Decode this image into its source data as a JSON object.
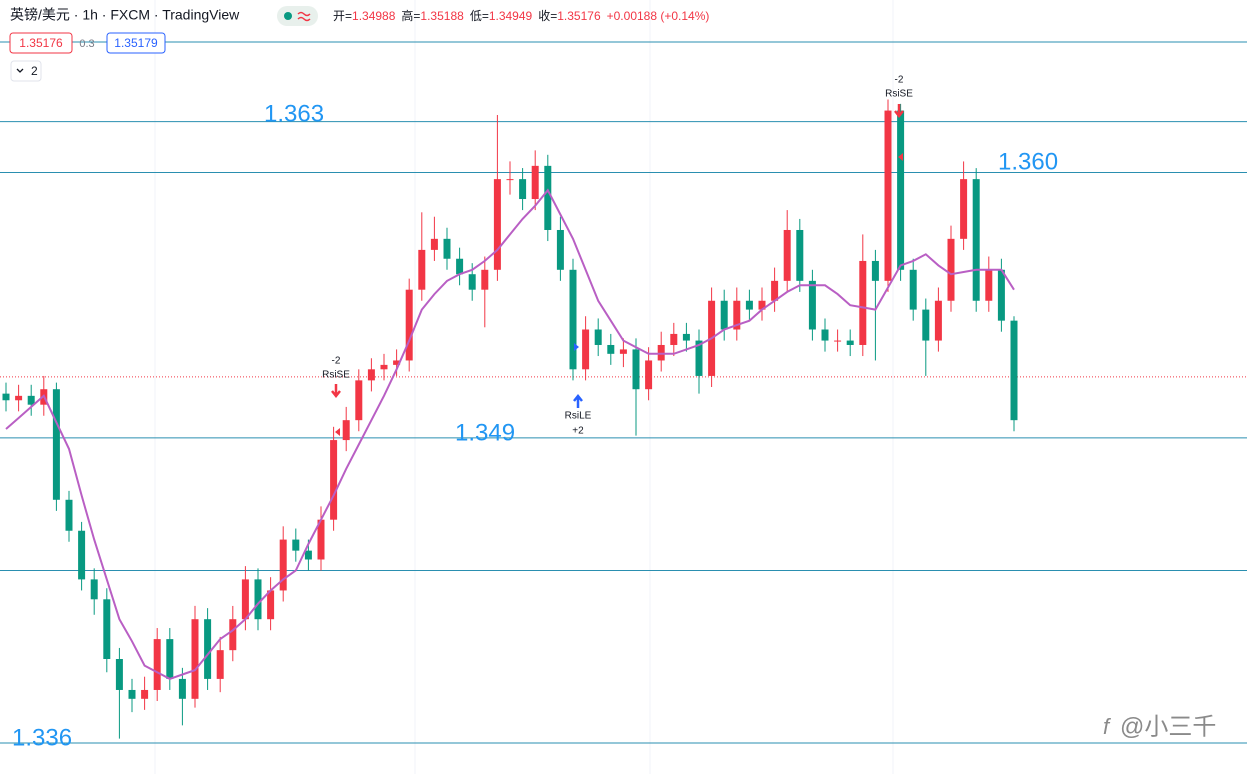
{
  "chart_data": {
    "type": "candlestick",
    "title": "英镑/美元 · 1h · FXCM · TradingView",
    "ohlc": [
      {
        "label": "开=",
        "value": 1.34988
      },
      {
        "label": "高=",
        "value": 1.35188
      },
      {
        "label": "低=",
        "value": 1.34949
      },
      {
        "label": "收=",
        "value": 1.35176
      }
    ],
    "change": "+0.00188 (+0.14%)",
    "quote": {
      "bid": 1.35176,
      "spread": 0.3,
      "ask": 1.35179
    },
    "indicator_count": 2,
    "ylim": [
      1.3338,
      1.3688
    ],
    "up_color": "#f23645",
    "down_color": "#089981",
    "candles": [
      [
        1.351,
        1.3515,
        1.3502,
        1.3507
      ],
      [
        1.3507,
        1.3514,
        1.3502,
        1.3509
      ],
      [
        1.3509,
        1.3514,
        1.35,
        1.3505
      ],
      [
        1.3505,
        1.3518,
        1.35,
        1.3512
      ],
      [
        1.3512,
        1.3515,
        1.3457,
        1.3462
      ],
      [
        1.3462,
        1.3466,
        1.3443,
        1.3448
      ],
      [
        1.3448,
        1.3452,
        1.3421,
        1.3426
      ],
      [
        1.3426,
        1.3431,
        1.341,
        1.3417
      ],
      [
        1.3417,
        1.3422,
        1.3384,
        1.339
      ],
      [
        1.339,
        1.3395,
        1.3354,
        1.3376
      ],
      [
        1.3376,
        1.3381,
        1.3366,
        1.3372
      ],
      [
        1.3372,
        1.3382,
        1.3367,
        1.3376
      ],
      [
        1.3376,
        1.3404,
        1.3371,
        1.3399
      ],
      [
        1.3399,
        1.3404,
        1.3376,
        1.3381
      ],
      [
        1.3381,
        1.3386,
        1.336,
        1.3372
      ],
      [
        1.3372,
        1.3414,
        1.3368,
        1.3408
      ],
      [
        1.3408,
        1.3413,
        1.3376,
        1.3381
      ],
      [
        1.3381,
        1.34,
        1.3375,
        1.3394
      ],
      [
        1.3394,
        1.3414,
        1.3389,
        1.3408
      ],
      [
        1.3408,
        1.3432,
        1.3403,
        1.3426
      ],
      [
        1.3426,
        1.3431,
        1.3403,
        1.3408
      ],
      [
        1.3408,
        1.3427,
        1.3403,
        1.3421
      ],
      [
        1.3421,
        1.345,
        1.3416,
        1.3444
      ],
      [
        1.3444,
        1.3449,
        1.3434,
        1.3439
      ],
      [
        1.3439,
        1.3444,
        1.343,
        1.3435
      ],
      [
        1.3435,
        1.3459,
        1.343,
        1.3453
      ],
      [
        1.3453,
        1.3495,
        1.3448,
        1.3489
      ],
      [
        1.3489,
        1.3504,
        1.3484,
        1.3498
      ],
      [
        1.3498,
        1.3521,
        1.3493,
        1.3516
      ],
      [
        1.3516,
        1.3526,
        1.3511,
        1.3521
      ],
      [
        1.3521,
        1.3528,
        1.3516,
        1.3523
      ],
      [
        1.3523,
        1.353,
        1.3518,
        1.3525
      ],
      [
        1.3525,
        1.3562,
        1.352,
        1.3557
      ],
      [
        1.3557,
        1.3592,
        1.3552,
        1.3575
      ],
      [
        1.3575,
        1.359,
        1.357,
        1.358
      ],
      [
        1.358,
        1.3585,
        1.3566,
        1.3571
      ],
      [
        1.3571,
        1.3576,
        1.3559,
        1.3564
      ],
      [
        1.3564,
        1.3569,
        1.3552,
        1.3557
      ],
      [
        1.3557,
        1.3572,
        1.354,
        1.3566
      ],
      [
        1.3566,
        1.3636,
        1.3561,
        1.3607
      ],
      [
        1.3607,
        1.3615,
        1.36,
        1.3607
      ],
      [
        1.3607,
        1.3612,
        1.3593,
        1.3598
      ],
      [
        1.3598,
        1.362,
        1.3593,
        1.3613
      ],
      [
        1.3613,
        1.3618,
        1.3579,
        1.3584
      ],
      [
        1.3584,
        1.359,
        1.3561,
        1.3566
      ],
      [
        1.3566,
        1.3571,
        1.3516,
        1.3521
      ],
      [
        1.3521,
        1.3545,
        1.3516,
        1.3539
      ],
      [
        1.3539,
        1.3544,
        1.3527,
        1.3532
      ],
      [
        1.3532,
        1.3537,
        1.3523,
        1.3528
      ],
      [
        1.3528,
        1.3535,
        1.3522,
        1.353
      ],
      [
        1.353,
        1.3535,
        1.3491,
        1.3512
      ],
      [
        1.3512,
        1.3531,
        1.3507,
        1.3525
      ],
      [
        1.3525,
        1.3538,
        1.352,
        1.3532
      ],
      [
        1.3532,
        1.3542,
        1.3527,
        1.3537
      ],
      [
        1.3537,
        1.3542,
        1.3529,
        1.3534
      ],
      [
        1.3534,
        1.3539,
        1.351,
        1.3518
      ],
      [
        1.3518,
        1.3558,
        1.3513,
        1.3552
      ],
      [
        1.3552,
        1.3557,
        1.3534,
        1.3539
      ],
      [
        1.3539,
        1.3558,
        1.3534,
        1.3552
      ],
      [
        1.3552,
        1.3557,
        1.3543,
        1.3548
      ],
      [
        1.3548,
        1.3558,
        1.3543,
        1.3552
      ],
      [
        1.3552,
        1.3567,
        1.3547,
        1.3561
      ],
      [
        1.3561,
        1.3593,
        1.3556,
        1.3584
      ],
      [
        1.3584,
        1.3589,
        1.3556,
        1.3561
      ],
      [
        1.3561,
        1.3566,
        1.3534,
        1.3539
      ],
      [
        1.3539,
        1.3544,
        1.3529,
        1.3534
      ],
      [
        1.3534,
        1.3539,
        1.3529,
        1.3534
      ],
      [
        1.3534,
        1.3539,
        1.3527,
        1.3532
      ],
      [
        1.3532,
        1.3582,
        1.3527,
        1.357
      ],
      [
        1.357,
        1.3575,
        1.3525,
        1.3561
      ],
      [
        1.3561,
        1.3643,
        1.3556,
        1.3638
      ],
      [
        1.3638,
        1.3641,
        1.3561,
        1.3566
      ],
      [
        1.3566,
        1.3571,
        1.3543,
        1.3548
      ],
      [
        1.3548,
        1.3553,
        1.3518,
        1.3534
      ],
      [
        1.3534,
        1.3558,
        1.3529,
        1.3552
      ],
      [
        1.3552,
        1.3586,
        1.3547,
        1.358
      ],
      [
        1.358,
        1.3615,
        1.3575,
        1.3607
      ],
      [
        1.3607,
        1.3612,
        1.3547,
        1.3552
      ],
      [
        1.3552,
        1.3572,
        1.3547,
        1.3566
      ],
      [
        1.3566,
        1.3571,
        1.3538,
        1.3543
      ],
      [
        1.3543,
        1.3545,
        1.3493,
        1.3498
      ]
    ],
    "ma": {
      "color": "#b95fc4",
      "values": [
        1.3494,
        1.3499,
        1.3504,
        1.3509,
        1.3497,
        1.3485,
        1.3464,
        1.3444,
        1.3426,
        1.3408,
        1.3398,
        1.3387,
        1.3384,
        1.3381,
        1.3383,
        1.3385,
        1.3392,
        1.3399,
        1.3403,
        1.3408,
        1.3415,
        1.3421,
        1.3426,
        1.343,
        1.3442,
        1.3453,
        1.3464,
        1.3476,
        1.3487,
        1.3498,
        1.3509,
        1.3521,
        1.3534,
        1.3548,
        1.3555,
        1.3561,
        1.3564,
        1.3566,
        1.357,
        1.3575,
        1.3582,
        1.3589,
        1.3595,
        1.3602,
        1.3591,
        1.358,
        1.3566,
        1.3552,
        1.3543,
        1.3534,
        1.3531,
        1.3528,
        1.3528,
        1.3528,
        1.353,
        1.3532,
        1.3535,
        1.3539,
        1.3541,
        1.3543,
        1.3548,
        1.3552,
        1.3556,
        1.3559,
        1.3559,
        1.3559,
        1.3555,
        1.355,
        1.3549,
        1.3548,
        1.3558,
        1.3568,
        1.357,
        1.3573,
        1.3568,
        1.3564,
        1.3565,
        1.3566,
        1.3566,
        1.3566,
        1.3557
      ]
    },
    "levels": [
      1.3669,
      1.3633,
      1.361,
      1.349,
      1.343,
      1.3352
    ],
    "level_color": "#2a8fb0",
    "level_labels": [
      {
        "value": 1.363,
        "label": "1.363"
      },
      {
        "value": 1.36,
        "label": "1.360"
      },
      {
        "value": 1.349,
        "label": "1.349"
      },
      {
        "value": 1.336,
        "label": "1.336"
      }
    ],
    "signals": [
      {
        "name": "RsiSE",
        "qty": -2
      },
      {
        "name": "RsiLE",
        "qty": {
          "value": 2,
          "label": "+2"
        }
      },
      {
        "name": "RsiSE",
        "qty": -2
      }
    ],
    "watermark": "@小三千"
  }
}
